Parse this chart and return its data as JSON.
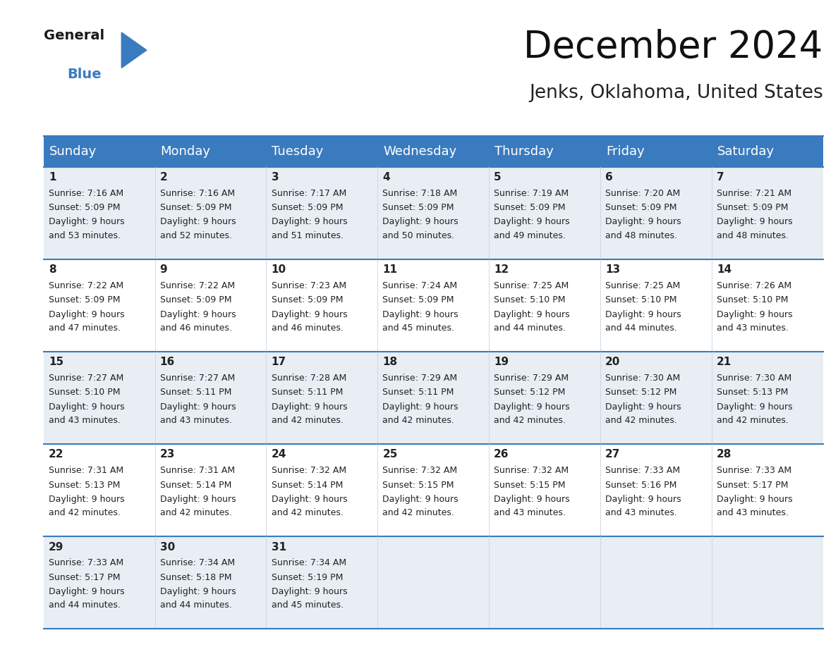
{
  "title": "December 2024",
  "subtitle": "Jenks, Oklahoma, United States",
  "header_bg": "#3a7bbf",
  "header_text": "#ffffff",
  "cell_bg_odd": "#e8eef4",
  "cell_bg_even": "#ffffff",
  "row_separator_color": "#3a7bbf",
  "days_of_week": [
    "Sunday",
    "Monday",
    "Tuesday",
    "Wednesday",
    "Thursday",
    "Friday",
    "Saturday"
  ],
  "calendar": [
    [
      {
        "day": "1",
        "sunrise": "7:16 AM",
        "sunset": "5:09 PM",
        "daylight": "9 hours",
        "daylight2": "and 53 minutes."
      },
      {
        "day": "2",
        "sunrise": "7:16 AM",
        "sunset": "5:09 PM",
        "daylight": "9 hours",
        "daylight2": "and 52 minutes."
      },
      {
        "day": "3",
        "sunrise": "7:17 AM",
        "sunset": "5:09 PM",
        "daylight": "9 hours",
        "daylight2": "and 51 minutes."
      },
      {
        "day": "4",
        "sunrise": "7:18 AM",
        "sunset": "5:09 PM",
        "daylight": "9 hours",
        "daylight2": "and 50 minutes."
      },
      {
        "day": "5",
        "sunrise": "7:19 AM",
        "sunset": "5:09 PM",
        "daylight": "9 hours",
        "daylight2": "and 49 minutes."
      },
      {
        "day": "6",
        "sunrise": "7:20 AM",
        "sunset": "5:09 PM",
        "daylight": "9 hours",
        "daylight2": "and 48 minutes."
      },
      {
        "day": "7",
        "sunrise": "7:21 AM",
        "sunset": "5:09 PM",
        "daylight": "9 hours",
        "daylight2": "and 48 minutes."
      }
    ],
    [
      {
        "day": "8",
        "sunrise": "7:22 AM",
        "sunset": "5:09 PM",
        "daylight": "9 hours",
        "daylight2": "and 47 minutes."
      },
      {
        "day": "9",
        "sunrise": "7:22 AM",
        "sunset": "5:09 PM",
        "daylight": "9 hours",
        "daylight2": "and 46 minutes."
      },
      {
        "day": "10",
        "sunrise": "7:23 AM",
        "sunset": "5:09 PM",
        "daylight": "9 hours",
        "daylight2": "and 46 minutes."
      },
      {
        "day": "11",
        "sunrise": "7:24 AM",
        "sunset": "5:09 PM",
        "daylight": "9 hours",
        "daylight2": "and 45 minutes."
      },
      {
        "day": "12",
        "sunrise": "7:25 AM",
        "sunset": "5:10 PM",
        "daylight": "9 hours",
        "daylight2": "and 44 minutes."
      },
      {
        "day": "13",
        "sunrise": "7:25 AM",
        "sunset": "5:10 PM",
        "daylight": "9 hours",
        "daylight2": "and 44 minutes."
      },
      {
        "day": "14",
        "sunrise": "7:26 AM",
        "sunset": "5:10 PM",
        "daylight": "9 hours",
        "daylight2": "and 43 minutes."
      }
    ],
    [
      {
        "day": "15",
        "sunrise": "7:27 AM",
        "sunset": "5:10 PM",
        "daylight": "9 hours",
        "daylight2": "and 43 minutes."
      },
      {
        "day": "16",
        "sunrise": "7:27 AM",
        "sunset": "5:11 PM",
        "daylight": "9 hours",
        "daylight2": "and 43 minutes."
      },
      {
        "day": "17",
        "sunrise": "7:28 AM",
        "sunset": "5:11 PM",
        "daylight": "9 hours",
        "daylight2": "and 42 minutes."
      },
      {
        "day": "18",
        "sunrise": "7:29 AM",
        "sunset": "5:11 PM",
        "daylight": "9 hours",
        "daylight2": "and 42 minutes."
      },
      {
        "day": "19",
        "sunrise": "7:29 AM",
        "sunset": "5:12 PM",
        "daylight": "9 hours",
        "daylight2": "and 42 minutes."
      },
      {
        "day": "20",
        "sunrise": "7:30 AM",
        "sunset": "5:12 PM",
        "daylight": "9 hours",
        "daylight2": "and 42 minutes."
      },
      {
        "day": "21",
        "sunrise": "7:30 AM",
        "sunset": "5:13 PM",
        "daylight": "9 hours",
        "daylight2": "and 42 minutes."
      }
    ],
    [
      {
        "day": "22",
        "sunrise": "7:31 AM",
        "sunset": "5:13 PM",
        "daylight": "9 hours",
        "daylight2": "and 42 minutes."
      },
      {
        "day": "23",
        "sunrise": "7:31 AM",
        "sunset": "5:14 PM",
        "daylight": "9 hours",
        "daylight2": "and 42 minutes."
      },
      {
        "day": "24",
        "sunrise": "7:32 AM",
        "sunset": "5:14 PM",
        "daylight": "9 hours",
        "daylight2": "and 42 minutes."
      },
      {
        "day": "25",
        "sunrise": "7:32 AM",
        "sunset": "5:15 PM",
        "daylight": "9 hours",
        "daylight2": "and 42 minutes."
      },
      {
        "day": "26",
        "sunrise": "7:32 AM",
        "sunset": "5:15 PM",
        "daylight": "9 hours",
        "daylight2": "and 43 minutes."
      },
      {
        "day": "27",
        "sunrise": "7:33 AM",
        "sunset": "5:16 PM",
        "daylight": "9 hours",
        "daylight2": "and 43 minutes."
      },
      {
        "day": "28",
        "sunrise": "7:33 AM",
        "sunset": "5:17 PM",
        "daylight": "9 hours",
        "daylight2": "and 43 minutes."
      }
    ],
    [
      {
        "day": "29",
        "sunrise": "7:33 AM",
        "sunset": "5:17 PM",
        "daylight": "9 hours",
        "daylight2": "and 44 minutes."
      },
      {
        "day": "30",
        "sunrise": "7:34 AM",
        "sunset": "5:18 PM",
        "daylight": "9 hours",
        "daylight2": "and 44 minutes."
      },
      {
        "day": "31",
        "sunrise": "7:34 AM",
        "sunset": "5:19 PM",
        "daylight": "9 hours",
        "daylight2": "and 45 minutes."
      },
      null,
      null,
      null,
      null
    ]
  ],
  "bg_color": "#ffffff",
  "title_fontsize": 38,
  "subtitle_fontsize": 19,
  "header_fontsize": 13,
  "day_num_fontsize": 11,
  "cell_text_fontsize": 9
}
